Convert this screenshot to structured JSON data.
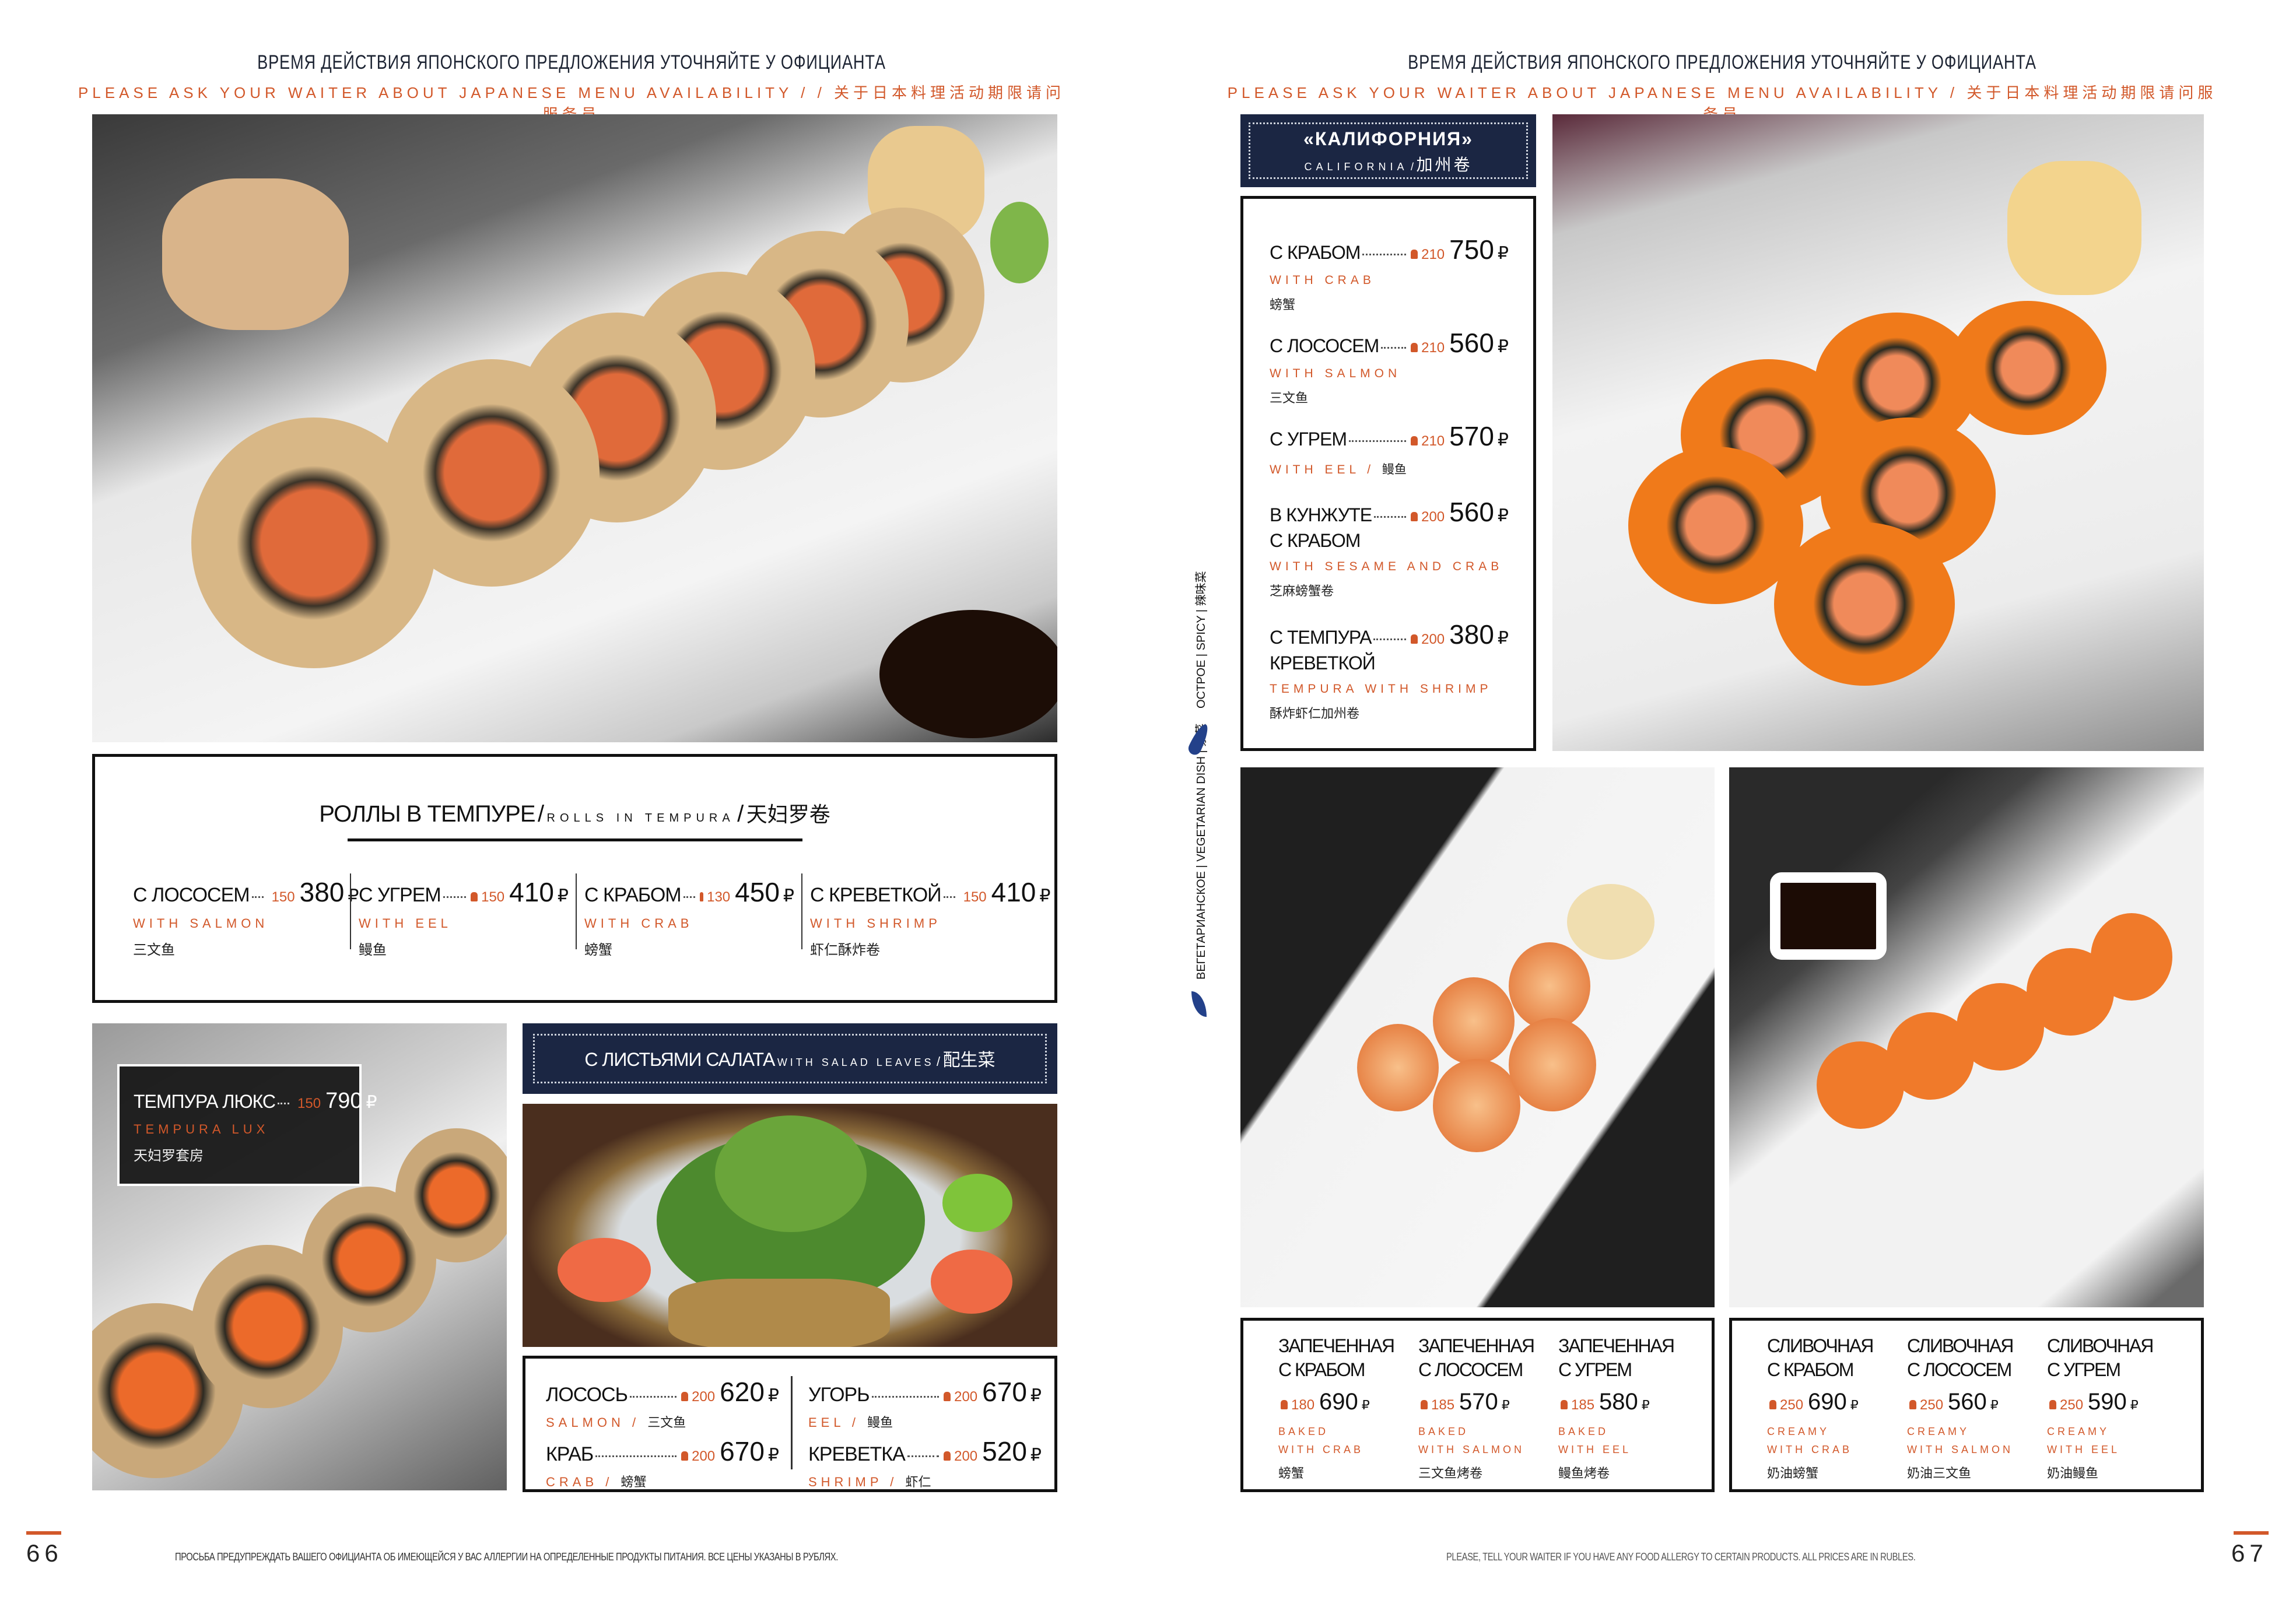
{
  "header_left": {
    "ru": "ВРЕМЯ ДЕЙСТВИЯ ЯПОНСКОГО ПРЕДЛОЖЕНИЯ УТОЧНЯЙТЕ У ОФИЦИАНТА",
    "en": "PLEASE ASK YOUR WAITER ABOUT JAPANESE MENU AVAILABILITY / / 关于日本料理活动期限请问服务员"
  },
  "header_right": {
    "ru": "ВРЕМЯ ДЕЙСТВИЯ ЯПОНСКОГО ПРЕДЛОЖЕНИЯ УТОЧНЯЙТЕ У ОФИЦИАНТА",
    "en": "PLEASE ASK YOUR WAITER ABOUT JAPANESE MENU AVAILABILITY / 关于日本料理活动期限请问服务员"
  },
  "currency": "₽",
  "colors": {
    "accent": "#d2582a",
    "navy": "#1b2643"
  },
  "tempura": {
    "title_ru": "РОЛЛЫ В ТЕМПУРЕ",
    "sep": "/",
    "title_en": "ROLLS IN TEMPURA",
    "title_zh": "天妇罗卷",
    "items": [
      {
        "name": "С ЛОСОСЕМ",
        "en": "WITH SALMON",
        "zh": "三文鱼",
        "weight": "150",
        "price": "380"
      },
      {
        "name": "С УГРЕМ",
        "en": "WITH EEL",
        "zh": "鳗鱼",
        "weight": "150",
        "price": "410"
      },
      {
        "name": "С КРАБОМ",
        "en": "WITH CRAB",
        "zh": "螃蟹",
        "weight": "130",
        "price": "450"
      },
      {
        "name": "С КРЕВЕТКОЙ",
        "en": "WITH SHRIMP",
        "zh": "虾仁酥炸卷",
        "weight": "150",
        "price": "410"
      }
    ]
  },
  "tempura_lux": {
    "name": "ТЕМПУРА ЛЮКС",
    "en": "TEMPURA LUX",
    "zh": "天妇罗套房",
    "weight": "150",
    "price": "790"
  },
  "salad": {
    "title_ru": "С ЛИСТЬЯМИ САЛАТА",
    "title_en": "WITH SALAD LEAVES",
    "title_zh": "配生菜",
    "items": [
      {
        "name": "ЛОСОСЬ",
        "en": "SALMON",
        "zh": "三文鱼",
        "weight": "200",
        "price": "620"
      },
      {
        "name": "УГОРЬ",
        "en": "EEL",
        "zh": "鳗鱼",
        "weight": "200",
        "price": "670"
      },
      {
        "name": "КРАБ",
        "en": "CRAB",
        "zh": "螃蟹",
        "weight": "200",
        "price": "670"
      },
      {
        "name": "КРЕВЕТКА",
        "en": "SHRIMP",
        "zh": "虾仁",
        "weight": "200",
        "price": "520"
      }
    ]
  },
  "california": {
    "title_ru": "«КАЛИФОРНИЯ»",
    "title_en": "CALIFORNIA",
    "title_zh": "加州卷",
    "items": [
      {
        "name": "С КРАБОМ",
        "name2": "",
        "en": "WITH CRAB",
        "zh": "螃蟹",
        "weight": "210",
        "price": "750"
      },
      {
        "name": "С ЛОСОСЕМ",
        "name2": "",
        "en": "WITH SALMON",
        "zh": "三文鱼",
        "weight": "210",
        "price": "560"
      },
      {
        "name": "С УГРЕМ",
        "name2": "",
        "en": "WITH EEL",
        "zh": "鳗鱼",
        "weight": "210",
        "price": "570",
        "inline": true
      },
      {
        "name": "В КУНЖУТЕ",
        "name2": "С КРАБОМ",
        "en": "WITH SESAME AND CRAB",
        "zh": "芝麻螃蟹卷",
        "weight": "200",
        "price": "560"
      },
      {
        "name": "С ТЕМПУРА",
        "name2": "КРЕВЕТКОЙ",
        "en": "TEMPURA WITH SHRIMP",
        "zh": "酥炸虾仁加州卷",
        "weight": "200",
        "price": "380"
      }
    ]
  },
  "legend": {
    "spicy": "ОСТРОЕ | SPICY | 辣味菜",
    "vegetarian": "ВЕГЕТАРИАНСКОЕ | VEGETARIAN DISH | 素菜"
  },
  "baked": [
    {
      "name": "ЗАПЕЧЕННАЯ",
      "name2": "С КРАБОМ",
      "weight": "180",
      "price": "690",
      "en1": "BAKED",
      "en2": "WITH CRAB",
      "zh": "螃蟹"
    },
    {
      "name": "ЗАПЕЧЕННАЯ",
      "name2": "С ЛОСОСЕМ",
      "weight": "185",
      "price": "570",
      "en1": "BAKED",
      "en2": "WITH SALMON",
      "zh": "三文鱼烤卷"
    },
    {
      "name": "ЗАПЕЧЕННАЯ",
      "name2": "С УГРЕМ",
      "weight": "185",
      "price": "580",
      "en1": "BAKED",
      "en2": "WITH EEL",
      "zh": "鳗鱼烤卷"
    }
  ],
  "creamy": [
    {
      "name": "СЛИВОЧНАЯ",
      "name2": "С КРАБОМ",
      "weight": "250",
      "price": "690",
      "en1": "CREAMY",
      "en2": "WITH CRAB",
      "zh": "奶油螃蟹"
    },
    {
      "name": "СЛИВОЧНАЯ",
      "name2": "С ЛОСОСЕМ",
      "weight": "250",
      "price": "560",
      "en1": "CREAMY",
      "en2": "WITH SALMON",
      "zh": "奶油三文鱼"
    },
    {
      "name": "СЛИВОЧНАЯ",
      "name2": "С УГРЕМ",
      "weight": "250",
      "price": "590",
      "en1": "CREAMY",
      "en2": "WITH EEL",
      "zh": "奶油鳗鱼"
    }
  ],
  "footer": {
    "left_page": "66",
    "left_note": "ПРОСЬБА ПРЕДУПРЕЖДАТЬ ВАШЕГО ОФИЦИАНТА ОБ ИМЕЮЩЕЙСЯ У ВАС АЛЛЕРГИИ НА ОПРЕДЕЛЕННЫЕ ПРОДУКТЫ ПИТАНИЯ. ВСЕ ЦЕНЫ УКАЗАНЫ В РУБЛЯХ.",
    "right_note": "PLEASE, TELL YOUR WAITER IF YOU HAVE ANY FOOD ALLERGY TO CERTAIN PRODUCTS. ALL PRICES ARE IN RUBLES.",
    "right_page": "67"
  }
}
